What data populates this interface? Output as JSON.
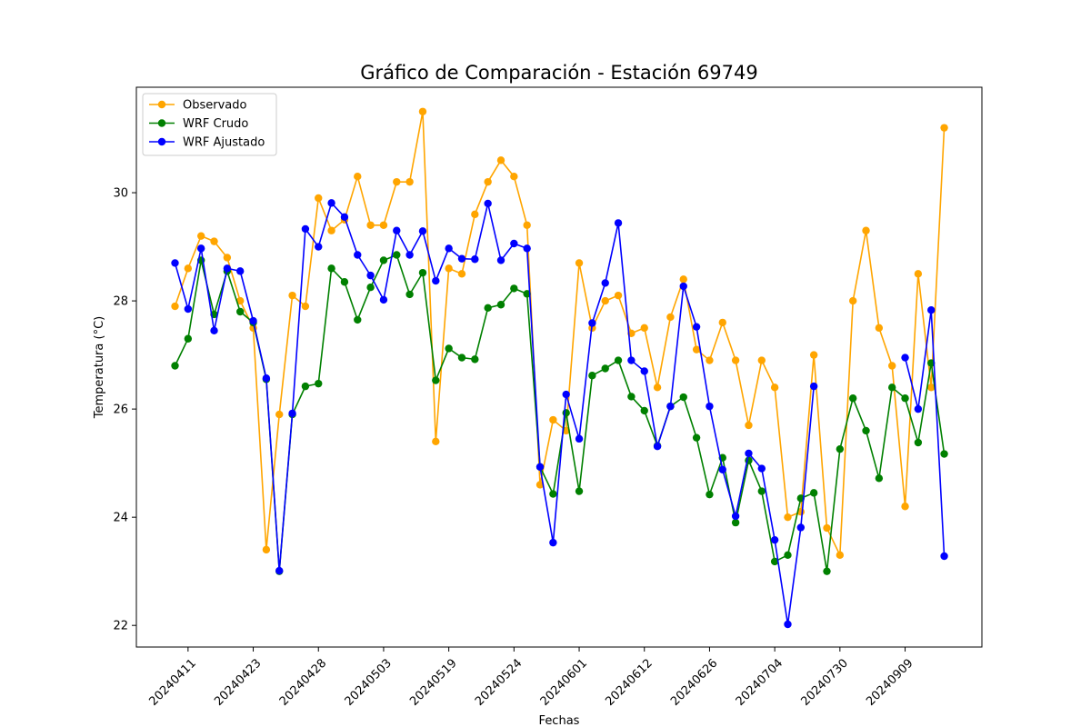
{
  "chart_data": {
    "type": "line",
    "title": "Gráfico de Comparación - Estación 69749",
    "xlabel": "Fechas",
    "ylabel": "Temperatura (°C)",
    "ylim": [
      21.6,
      31.95
    ],
    "yticks": [
      22,
      24,
      26,
      28,
      30
    ],
    "grid": false,
    "legend_position": "top-left",
    "x_tick_labels": [
      "20240411",
      "20240423",
      "20240428",
      "20240503",
      "20240519",
      "20240524",
      "20240601",
      "20240612",
      "20240626",
      "20240704",
      "20240730",
      "20240909"
    ],
    "x_tick_positions": [
      1,
      6,
      11,
      16,
      21,
      26,
      31,
      36,
      41,
      46,
      51,
      56
    ],
    "x_count": 60,
    "series": [
      {
        "name": "Observado",
        "color": "#ffa500",
        "values": [
          27.9,
          28.6,
          29.2,
          29.1,
          28.8,
          28.0,
          27.5,
          23.4,
          25.9,
          28.1,
          27.9,
          29.9,
          29.3,
          29.5,
          30.3,
          29.4,
          29.4,
          30.2,
          30.2,
          31.5,
          25.4,
          28.6,
          28.5,
          29.6,
          30.2,
          30.6,
          30.3,
          29.4,
          24.6,
          25.8,
          25.6,
          28.7,
          27.5,
          28.0,
          28.1,
          27.4,
          27.5,
          26.4,
          27.7,
          28.4,
          27.1,
          26.9,
          27.6,
          26.9,
          25.7,
          26.9,
          26.4,
          24.0,
          24.1,
          27.0,
          23.8,
          23.3,
          28.0,
          29.3,
          27.5,
          26.8,
          24.2,
          28.5,
          26.4,
          31.2
        ]
      },
      {
        "name": "WRF Crudo",
        "color": "#008000",
        "values": [
          26.8,
          27.3,
          28.75,
          27.75,
          28.55,
          27.8,
          27.6,
          26.55,
          23.0,
          25.9,
          26.42,
          26.47,
          28.6,
          28.35,
          27.65,
          28.25,
          28.75,
          28.85,
          28.12,
          28.52,
          26.53,
          27.12,
          26.95,
          26.92,
          27.87,
          27.93,
          28.23,
          28.13,
          24.93,
          24.43,
          25.93,
          24.48,
          26.62,
          26.75,
          26.9,
          26.23,
          25.97,
          25.32,
          26.05,
          26.22,
          25.47,
          24.42,
          25.1,
          23.9,
          25.05,
          24.48,
          23.18,
          23.3,
          24.35,
          24.45,
          23.0,
          25.26,
          26.2,
          25.6,
          24.72,
          26.4,
          26.2,
          25.38,
          26.85,
          25.17
        ]
      },
      {
        "name": "WRF Ajustado",
        "color": "#0000ff",
        "values": [
          28.7,
          27.85,
          28.97,
          27.45,
          28.6,
          28.55,
          27.63,
          26.57,
          23.01,
          25.92,
          29.33,
          29.0,
          29.81,
          29.55,
          28.85,
          28.47,
          28.02,
          29.3,
          28.85,
          29.29,
          28.37,
          28.97,
          28.78,
          28.77,
          29.8,
          28.75,
          29.06,
          28.97,
          24.93,
          23.53,
          26.27,
          25.45,
          27.59,
          28.33,
          29.44,
          26.9,
          26.7,
          25.31,
          26.05,
          28.27,
          27.52,
          26.05,
          24.88,
          24.02,
          25.18,
          24.9,
          23.58,
          22.02,
          23.81,
          26.42,
          null,
          null,
          null,
          null,
          null,
          null,
          26.95,
          26.0,
          27.83,
          23.28
        ]
      }
    ]
  }
}
